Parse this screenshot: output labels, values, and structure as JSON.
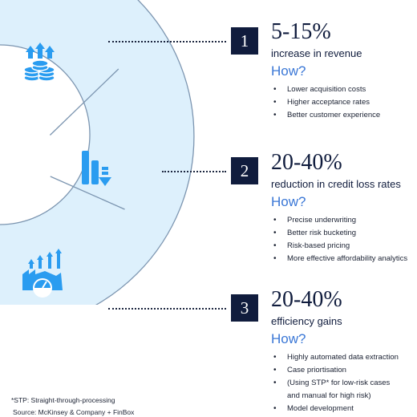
{
  "colors": {
    "accent_blue": "#2a9cf0",
    "light_blue": "#ddf0fc",
    "navy": "#101c3d",
    "how_blue": "#3a77d6"
  },
  "segments": [
    {
      "number": "1",
      "stat": "5-15%",
      "description": "increase in revenue",
      "how": "How?",
      "icon": "coins-arrows-up-icon",
      "bullets": [
        "Lower acquisition costs",
        "Higher acceptance rates",
        "Better customer experience"
      ]
    },
    {
      "number": "2",
      "stat": "20-40%",
      "description": "reduction in credit loss rates",
      "how": "How?",
      "icon": "bars-arrow-down-icon",
      "bullets": [
        "Precise underwriting",
        "Better risk bucketing",
        "Risk-based pricing",
        "More effective affordability analytics"
      ]
    },
    {
      "number": "3",
      "stat": "20-40%",
      "description": "efficiency gains",
      "how": "How?",
      "icon": "factory-gauge-arrows-up-icon",
      "bullets": [
        "Highly automated data extraction",
        "Case priortisation",
        "(Using STP* for low-risk cases",
        "and manual for high risk)",
        "Model development"
      ]
    }
  ],
  "footnote": "*STP: Straight-through-processing",
  "source": "Source: McKinsey & Company + FinBox"
}
